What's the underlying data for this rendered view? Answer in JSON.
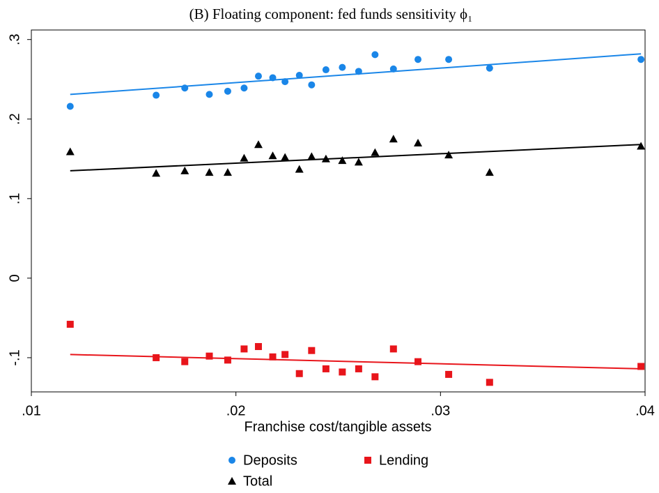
{
  "chart_data": {
    "type": "scatter",
    "title": "(B) Floating component: fed funds sensitivity ϕ₁",
    "x_label": "Franchise cost/tangible assets",
    "xlim": [
      0.01,
      0.04
    ],
    "xticks": [
      {
        "value": 0.01,
        "label": ".01"
      },
      {
        "value": 0.02,
        "label": ".02"
      },
      {
        "value": 0.03,
        "label": ".03"
      },
      {
        "value": 0.04,
        "label": ".04"
      }
    ],
    "ylim": [
      -0.143,
      0.312
    ],
    "yticks": [
      {
        "value": -0.1,
        "label": "-.1"
      },
      0,
      {
        "value": 0.1,
        "label": ".1"
      },
      {
        "value": 0.2,
        "label": ".2"
      },
      {
        "value": 0.3,
        "label": ".3"
      }
    ],
    "x": [
      0.0119,
      0.0161,
      0.0175,
      0.0187,
      0.0196,
      0.0204,
      0.0211,
      0.0218,
      0.0224,
      0.0231,
      0.0237,
      0.0244,
      0.0252,
      0.026,
      0.0268,
      0.0277,
      0.0289,
      0.0304,
      0.0324,
      0.0398
    ],
    "series": [
      {
        "name": "Deposits",
        "color": "#1a86e8",
        "marker": "circle",
        "values": [
          0.216,
          0.23,
          0.239,
          0.231,
          0.235,
          0.239,
          0.254,
          0.252,
          0.247,
          0.255,
          0.243,
          0.262,
          0.265,
          0.26,
          0.281,
          0.263,
          0.275,
          0.275,
          0.264,
          0.275
        ],
        "fit": {
          "x": [
            0.0119,
            0.0398
          ],
          "y": [
            0.231,
            0.282
          ]
        }
      },
      {
        "name": "Lending",
        "color": "#e8151b",
        "marker": "square",
        "values": [
          -0.058,
          -0.1,
          -0.105,
          -0.098,
          -0.103,
          -0.089,
          -0.086,
          -0.099,
          -0.096,
          -0.12,
          -0.091,
          -0.114,
          -0.118,
          -0.114,
          -0.124,
          -0.089,
          -0.105,
          -0.121,
          -0.131,
          -0.111
        ],
        "fit": {
          "x": [
            0.0119,
            0.0398
          ],
          "y": [
            -0.096,
            -0.114
          ]
        }
      },
      {
        "name": "Total",
        "color": "#000000",
        "marker": "triangle",
        "values": [
          0.159,
          0.132,
          0.135,
          0.133,
          0.133,
          0.151,
          0.168,
          0.154,
          0.152,
          0.137,
          0.153,
          0.15,
          0.148,
          0.146,
          0.158,
          0.175,
          0.17,
          0.155,
          0.133,
          0.166
        ],
        "fit": {
          "x": [
            0.0119,
            0.0398
          ],
          "y": [
            0.135,
            0.168
          ]
        }
      }
    ]
  }
}
